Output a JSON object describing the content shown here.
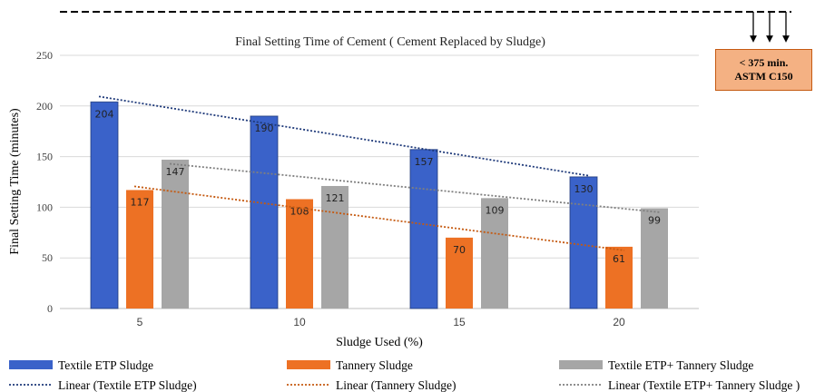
{
  "chart_data": {
    "type": "bar",
    "title": "Final Setting Time of Cement ( Cement Replaced by Sludge)",
    "xlabel": "Sludge Used (%)",
    "ylabel": "Final Setting Time (minutes)",
    "categories": [
      "5",
      "10",
      "15",
      "20"
    ],
    "ylim": [
      0,
      250
    ],
    "yticks": [
      0,
      50,
      100,
      150,
      200,
      250
    ],
    "grid": true,
    "legend_position": "bottom",
    "series": [
      {
        "name": "Textile ETP Sludge",
        "values": [
          204,
          190,
          157,
          130
        ],
        "color": "#3a62c9",
        "trend_name": "Linear (Textile ETP Sludge)",
        "trend_color": "#1f3a7a"
      },
      {
        "name": "Tannery Sludge",
        "values": [
          117,
          108,
          70,
          61
        ],
        "color": "#ed7124",
        "trend_name": "Linear (Tannery Sludge)",
        "trend_color": "#c55a11"
      },
      {
        "name": "Textile ETP+ Tannery Sludge",
        "values": [
          147,
          121,
          109,
          99
        ],
        "color": "#a6a6a6",
        "trend_name": "Linear (Textile ETP+ Tannery Sludge )",
        "trend_color": "#7f7f7f"
      }
    ],
    "limit": {
      "line1": "< 375 min.",
      "line2": "ASTM C150"
    }
  }
}
